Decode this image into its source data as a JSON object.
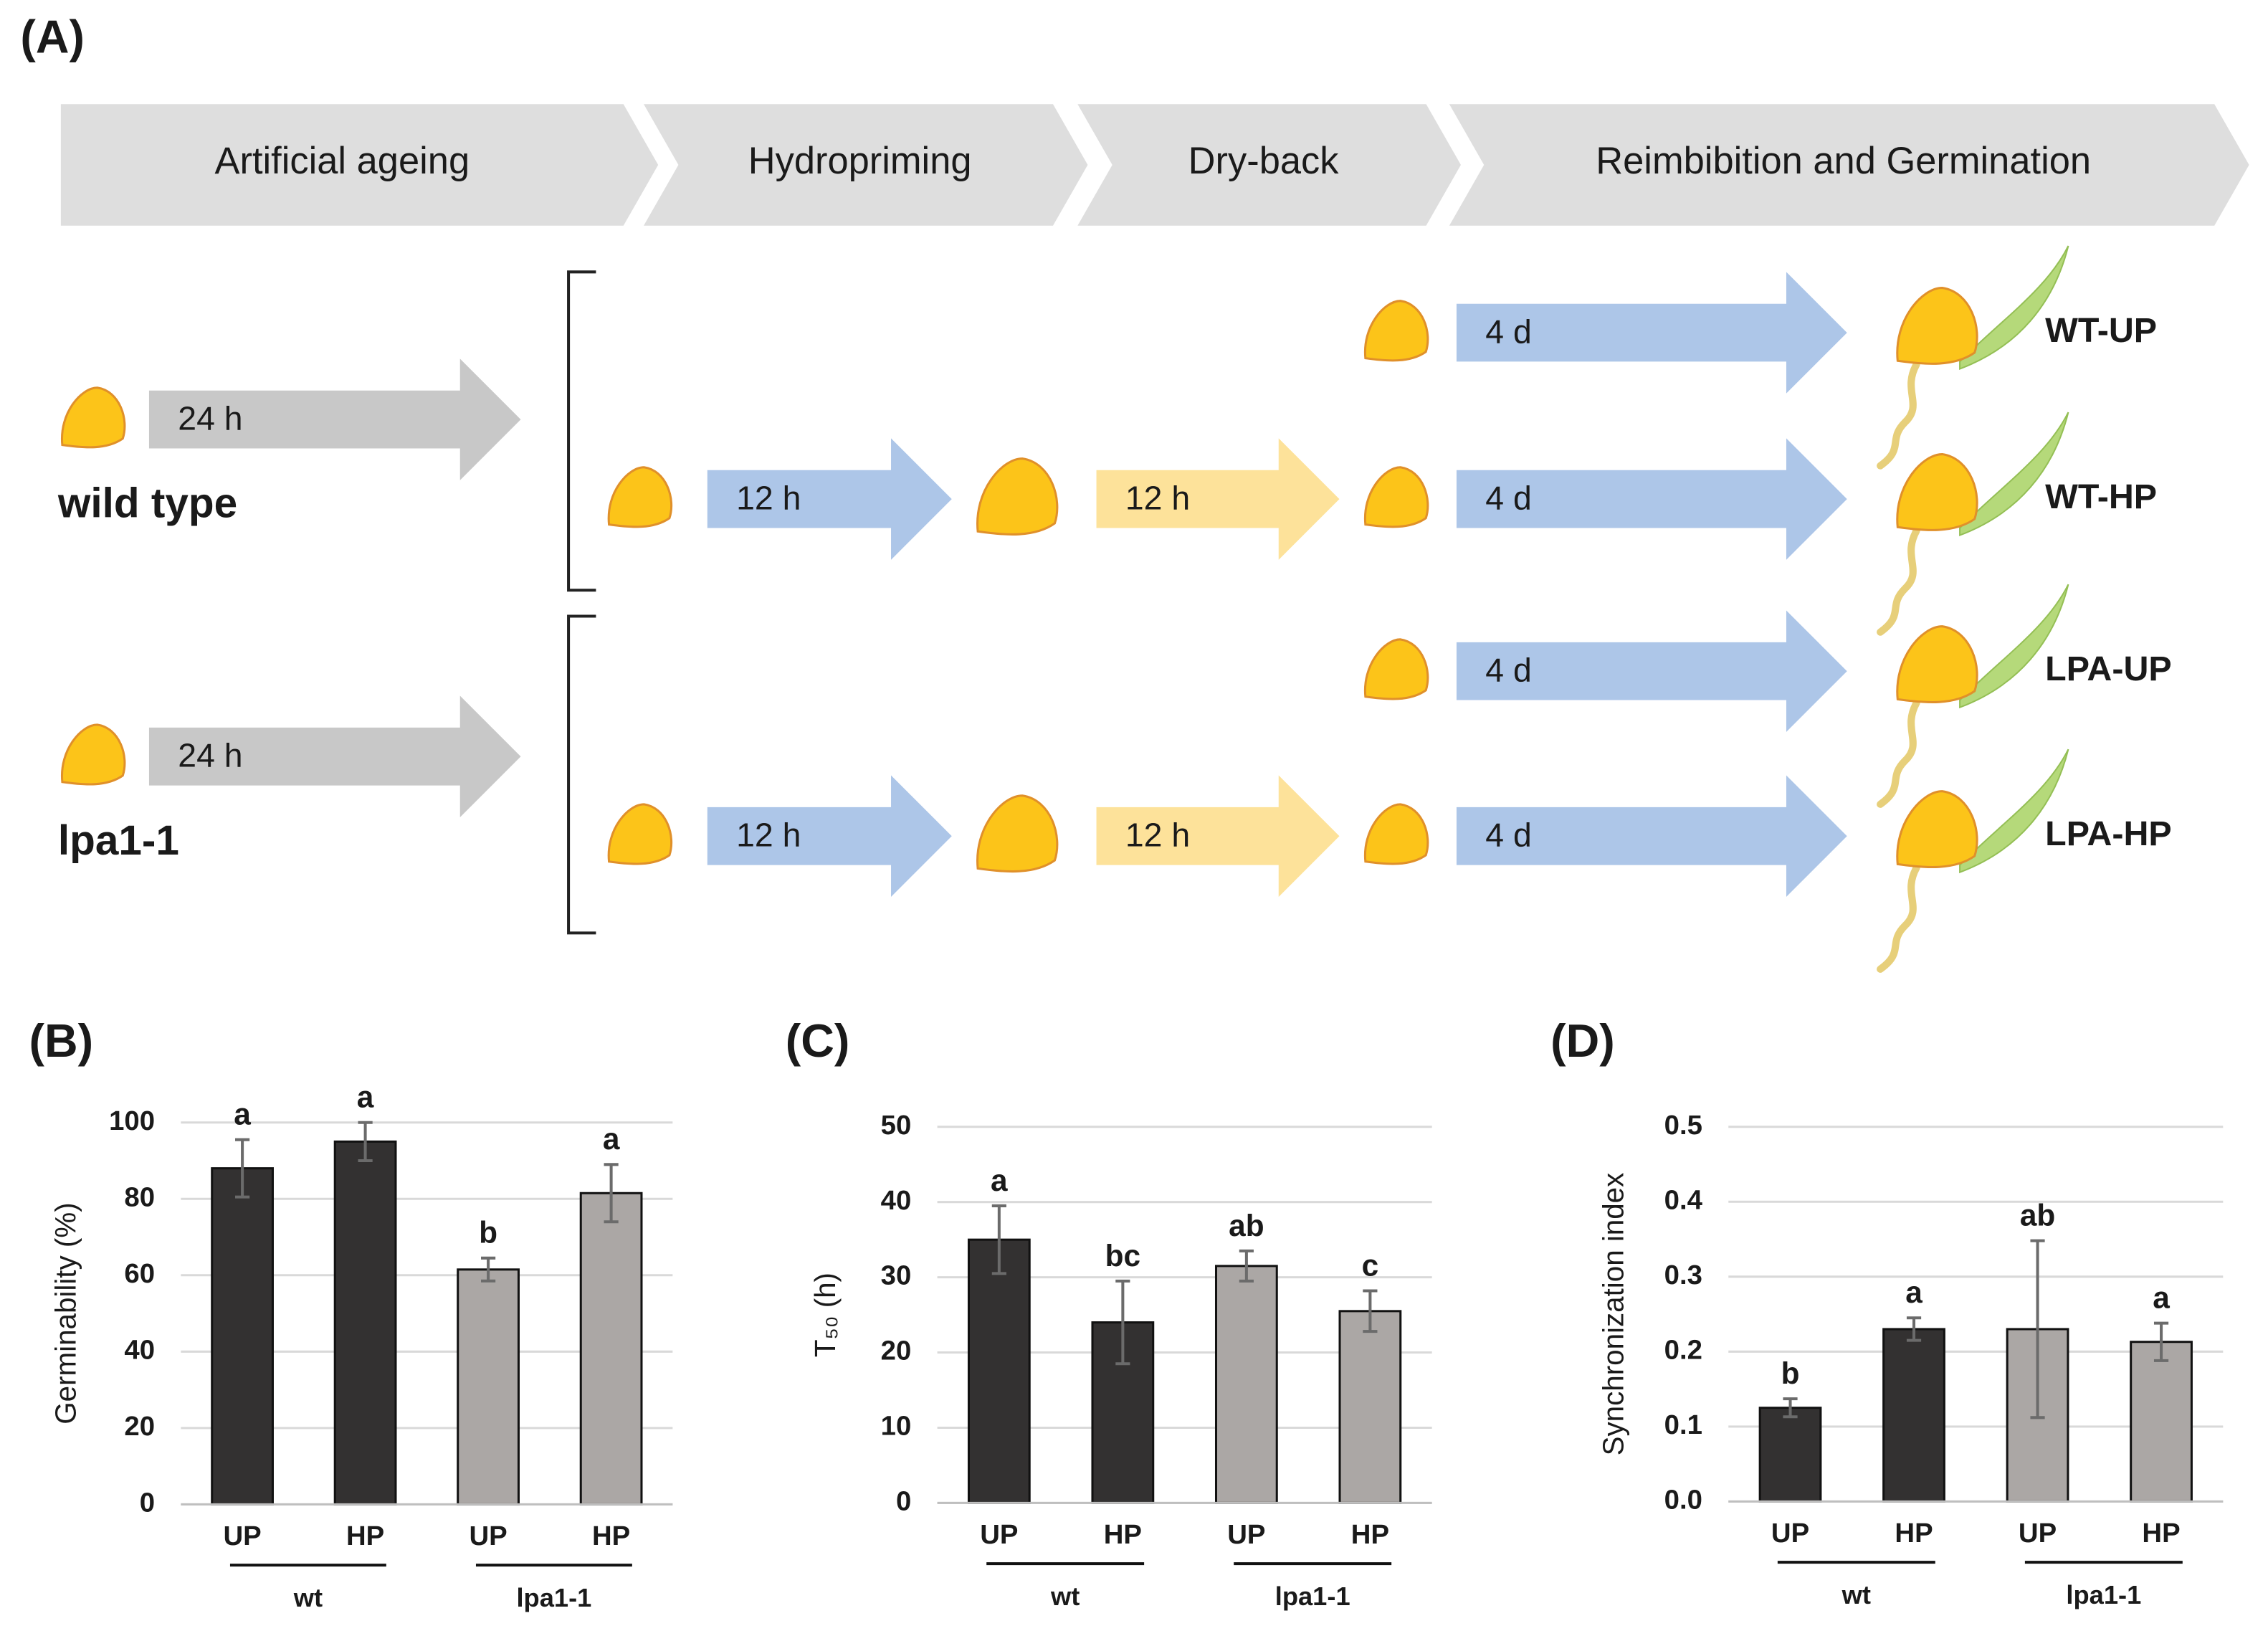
{
  "diagram": {
    "title": "(A)",
    "stages": [
      "Artificial ageing",
      "Hydropriming",
      "Dry-back",
      "Reimbibition and Germination"
    ],
    "genotypes": [
      {
        "name": "wild type",
        "ageing": "24 h"
      },
      {
        "name": "lpa1-1",
        "ageing": "24 h"
      }
    ],
    "treatments": [
      {
        "label": "WT-UP",
        "germination": "4 d"
      },
      {
        "label": "WT-HP",
        "priming": "12 h",
        "dryback": "12 h",
        "germination": "4 d"
      },
      {
        "label": "LPA-UP",
        "germination": "4 d"
      },
      {
        "label": "LPA-HP",
        "priming": "12 h",
        "dryback": "12 h",
        "germination": "4 d"
      }
    ]
  },
  "chart_data": [
    {
      "type": "bar",
      "title": "(B)",
      "y_label": "Germinability (%)",
      "categories": [
        "UP",
        "HP",
        "UP",
        "HP"
      ],
      "groups": [
        "wt",
        "lpa1-1"
      ],
      "values": [
        88,
        95,
        61.5,
        81.5
      ],
      "errors": [
        7.5,
        5,
        3,
        7.5
      ],
      "significance": [
        "a",
        "a",
        "b",
        "a"
      ],
      "colors": [
        "#333131",
        "#333131",
        "#aba7a5",
        "#aba7a5"
      ],
      "ylim": [
        0,
        100
      ],
      "yticks": [
        0,
        20,
        40,
        60,
        80,
        100
      ],
      "grid": true
    },
    {
      "type": "bar",
      "title": "(C)",
      "y_label": "T₅₀ (h)",
      "categories": [
        "UP",
        "HP",
        "UP",
        "HP"
      ],
      "groups": [
        "wt",
        "lpa1-1"
      ],
      "values": [
        35,
        24,
        31.5,
        25.5
      ],
      "errors": [
        4.5,
        5.5,
        2,
        2.7
      ],
      "significance": [
        "a",
        "bc",
        "ab",
        "c"
      ],
      "colors": [
        "#333131",
        "#333131",
        "#aba7a5",
        "#aba7a5"
      ],
      "ylim": [
        0,
        50
      ],
      "yticks": [
        0,
        10,
        20,
        30,
        40,
        50
      ],
      "grid": true
    },
    {
      "type": "bar",
      "title": "(D)",
      "y_label": "Synchronization index",
      "categories": [
        "UP",
        "HP",
        "UP",
        "HP"
      ],
      "groups": [
        "wt",
        "lpa1-1"
      ],
      "values": [
        0.125,
        0.23,
        0.23,
        0.213
      ],
      "errors": [
        0.012,
        0.015,
        0.118,
        0.025
      ],
      "significance": [
        "b",
        "a",
        "ab",
        "a"
      ],
      "colors": [
        "#333131",
        "#333131",
        "#aba7a5",
        "#aba7a5"
      ],
      "ylim": [
        0,
        0.5
      ],
      "yticks": [
        {
          "value": 0,
          "label": "0.0"
        },
        0.1,
        0.2,
        0.3,
        0.4,
        0.5
      ],
      "grid": true
    }
  ]
}
